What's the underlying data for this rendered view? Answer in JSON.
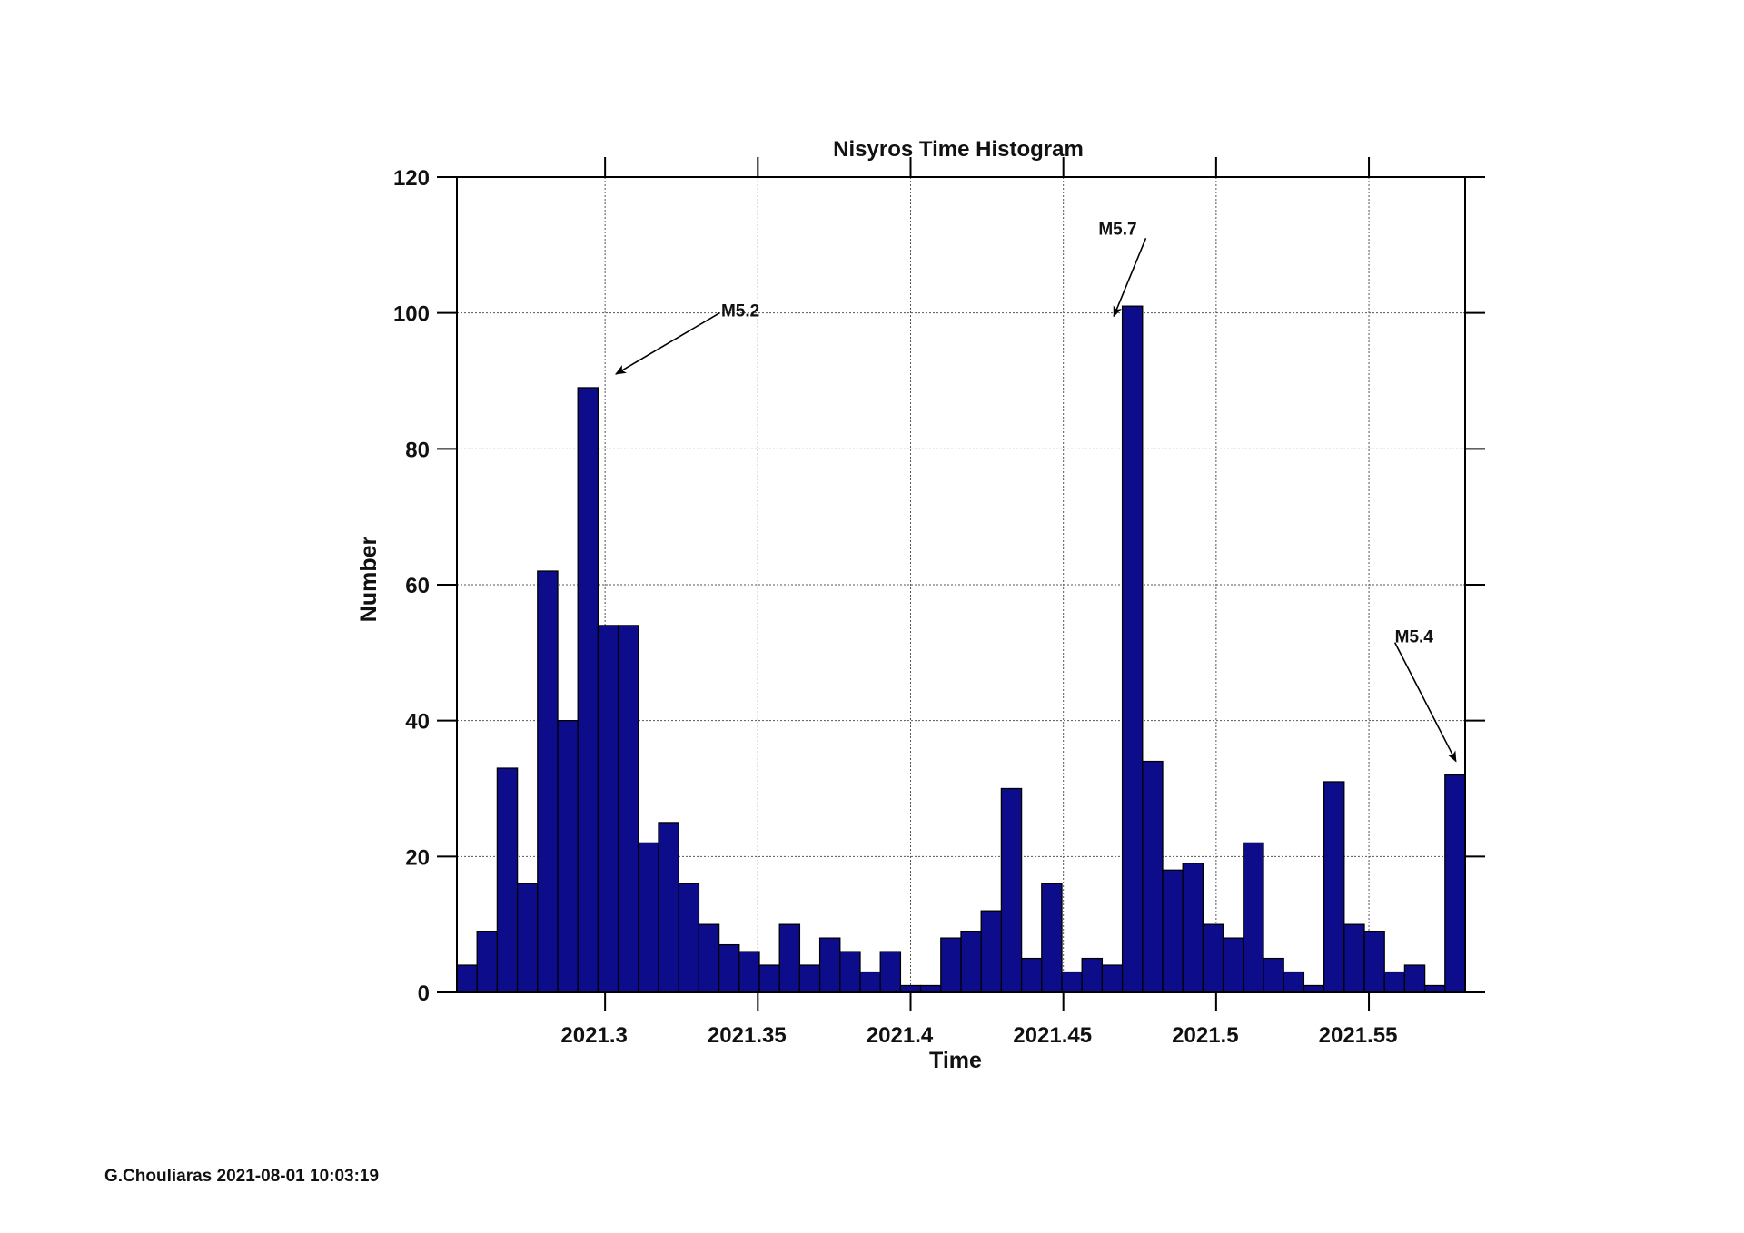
{
  "footer": {
    "credit": "G.Chouliaras 2021-08-01 10:03:19"
  },
  "colors": {
    "bar_fill": "#0d0d8c",
    "bar_stroke": "#000000",
    "grid": "#555555"
  },
  "chart_data": {
    "type": "bar",
    "title": "Nisyros Time Histogram",
    "xlabel": "Time",
    "ylabel": "Number",
    "xlim": [
      2021.2515,
      2021.5815
    ],
    "ylim": [
      0,
      120
    ],
    "xticks": [
      2021.3,
      2021.35,
      2021.4,
      2021.45,
      2021.5,
      2021.55
    ],
    "xtick_labels": [
      "2021.3",
      "2021.35",
      "2021.4",
      "2021.45",
      "2021.5",
      "2021.55"
    ],
    "yticks": [
      0,
      20,
      40,
      60,
      80,
      100,
      120
    ],
    "ytick_labels": [
      "0",
      "20",
      "40",
      "60",
      "80",
      "100",
      "120"
    ],
    "grid": true,
    "bin_width": 0.0066,
    "bin_start": 2021.2515,
    "values": [
      4,
      9,
      33,
      16,
      62,
      40,
      89,
      54,
      54,
      22,
      25,
      16,
      10,
      7,
      6,
      4,
      10,
      4,
      8,
      6,
      3,
      6,
      1,
      1,
      8,
      9,
      12,
      30,
      5,
      16,
      3,
      5,
      4,
      101,
      34,
      18,
      19,
      10,
      8,
      22,
      5,
      3,
      1,
      31,
      10,
      9,
      3,
      4,
      1,
      32
    ],
    "annotations": [
      {
        "text": "M5.2",
        "text_x": 2021.338,
        "text_y": 99.5,
        "arrow_from": [
          2021.3375,
          100
        ],
        "arrow_to": [
          2021.3035,
          91
        ]
      },
      {
        "text": "M5.7",
        "text_x": 2021.4615,
        "text_y": 111.5,
        "arrow_from": [
          2021.477,
          111
        ],
        "arrow_to": [
          2021.4665,
          99.5
        ]
      },
      {
        "text": "M5.4",
        "text_x": 2021.5585,
        "text_y": 51.5,
        "arrow_from": [
          2021.5585,
          51.5
        ],
        "arrow_to": [
          2021.5785,
          34
        ]
      }
    ]
  }
}
